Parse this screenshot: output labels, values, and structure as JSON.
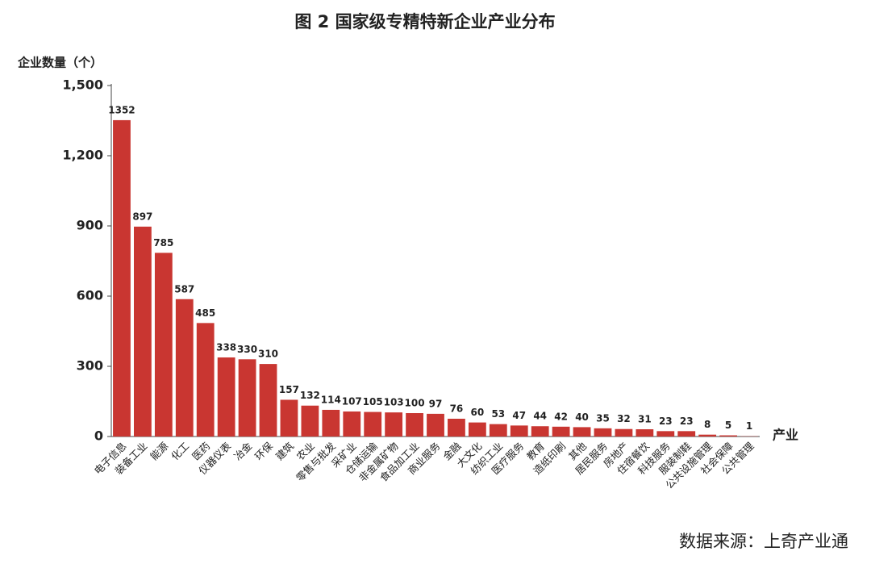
{
  "chart_data": {
    "type": "bar",
    "title": "图 2  国家级专精特新企业产业分布",
    "y_label": "企业数量（个）",
    "x_label": "产业",
    "source": "数据来源：上奇产业通",
    "categories": [
      "电子信息",
      "装备工业",
      "能源",
      "化工",
      "医药",
      "仪器仪表",
      "冶金",
      "环保",
      "建筑",
      "农业",
      "零售与批发",
      "采矿业",
      "仓储运输",
      "非金属矿物",
      "食品加工业",
      "商业服务",
      "金融",
      "大文化",
      "纺织工业",
      "医疗服务",
      "教育",
      "造纸印刷",
      "其他",
      "居民服务",
      "房地产",
      "住宿餐饮",
      "科技服务",
      "服装制鞋",
      "公共设施管理",
      "社会保障",
      "公共管理"
    ],
    "values": [
      1352,
      897,
      785,
      587,
      485,
      338,
      330,
      310,
      157,
      132,
      114,
      107,
      105,
      103,
      100,
      97,
      76,
      60,
      53,
      47,
      44,
      42,
      40,
      35,
      32,
      31,
      23,
      23,
      8,
      5,
      1
    ],
    "color": "#c93631",
    "ylim": [
      0,
      1500
    ],
    "yticks": [
      0,
      300,
      600,
      900,
      {
        "value": 1200,
        "label": "1,200"
      },
      {
        "value": 1500,
        "label": "1,500"
      }
    ],
    "grid": false
  }
}
